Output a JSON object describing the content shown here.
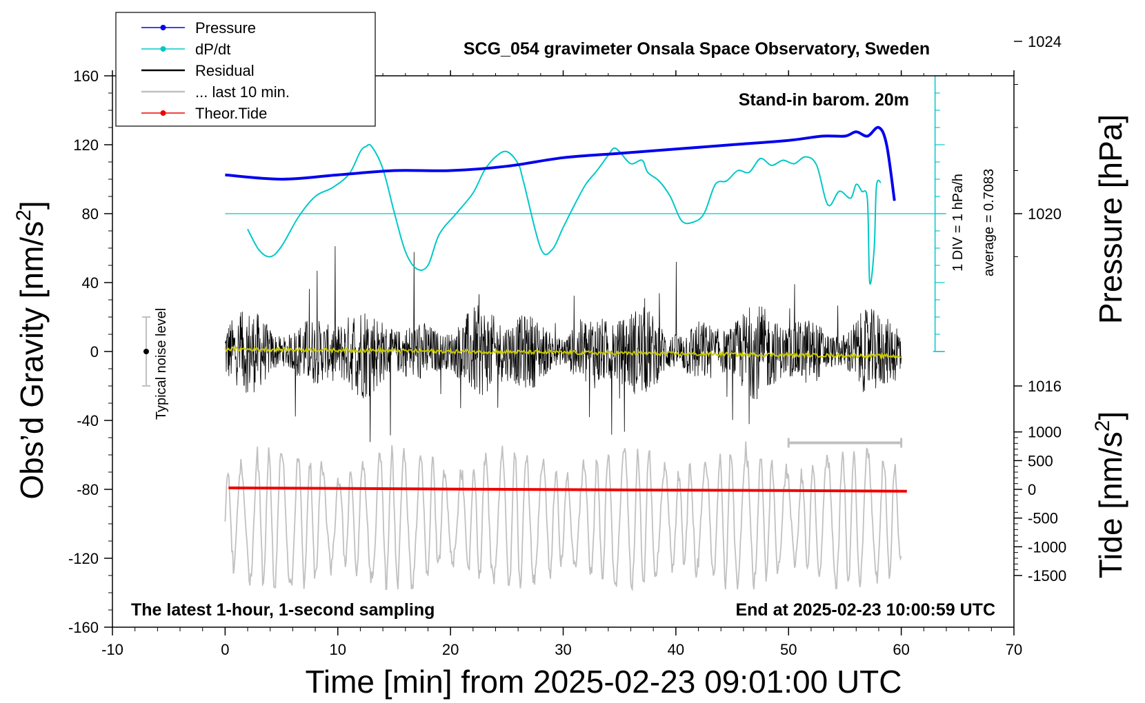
{
  "chart_data": {
    "type": "line",
    "title": "SCG_054 gravimeter Onsala Space Observatory, Sweden",
    "xlabel": "Time [min] from 2025-02-23 09:01:00 UTC",
    "ylabel_left": "Obs'd Gravity [nm/s²]",
    "ylabel_right_pressure": "Pressure [hPa]",
    "ylabel_right_tide": "Tide [nm/s²]",
    "xlim": [
      -10,
      70
    ],
    "ylim": [
      -160,
      160
    ],
    "x_ticks": [
      "-10",
      "0",
      "10",
      "20",
      "30",
      "40",
      "50",
      "60",
      "70"
    ],
    "y_ticks": [
      "160",
      "120",
      "80",
      "40",
      "0",
      "-40",
      "-80",
      "-120",
      "-160"
    ],
    "pressure_ticks": [
      "1024",
      "1020",
      "1016"
    ],
    "tide_ticks": [
      "1000",
      "500",
      "0",
      "-500",
      "-1000",
      "-1500"
    ],
    "legend": [
      "Pressure",
      "dP/dt",
      "Residual",
      "... last 10 min.",
      "Theor.Tide"
    ],
    "series": [
      {
        "name": "Pressure",
        "color": "#0000ee",
        "unit": "hPa",
        "x": [
          0,
          5,
          10,
          15,
          20,
          25,
          30,
          35,
          40,
          45,
          50,
          53,
          55,
          56,
          57,
          58,
          58.7,
          59.4
        ],
        "values": [
          1020.9,
          1020.8,
          1020.9,
          1021.0,
          1021.0,
          1021.1,
          1021.3,
          1021.4,
          1021.5,
          1021.6,
          1021.7,
          1021.8,
          1021.8,
          1021.9,
          1021.8,
          1022.0,
          1021.6,
          1020.3
        ]
      },
      {
        "name": "dP/dt",
        "color": "#00c8c8",
        "unit": "hPa/h (1 DIV = 1 hPa/h, zero at y=80)",
        "x": [
          2,
          3,
          4,
          5,
          6.5,
          8,
          9.5,
          11,
          12,
          12.5,
          13,
          14,
          15,
          16,
          17,
          18,
          19,
          20.5,
          22,
          23,
          24,
          25,
          26,
          26.5,
          28,
          29,
          30,
          31,
          32,
          33,
          34,
          34.5,
          35,
          36,
          37,
          37.5,
          38.5,
          39.5,
          40.5,
          41.5,
          42.5,
          43.5,
          44.5,
          45.5,
          46.5,
          47.5,
          48.5,
          49.5,
          50.5,
          51.5,
          52.5,
          53.5,
          54.5,
          55.5,
          56,
          56.5,
          57,
          57.2,
          57.6,
          57.8,
          58.2
        ],
        "values": [
          -0.45,
          -1.05,
          -1.25,
          -0.95,
          -0.1,
          0.5,
          0.75,
          1.15,
          1.8,
          1.95,
          1.95,
          1.3,
          0.05,
          -1.1,
          -1.6,
          -1.5,
          -0.6,
          0.0,
          0.6,
          1.25,
          1.65,
          1.8,
          1.45,
          0.9,
          -1.0,
          -1.05,
          -0.4,
          0.25,
          0.85,
          1.25,
          1.7,
          1.9,
          1.8,
          1.45,
          1.55,
          1.2,
          0.95,
          0.5,
          -0.2,
          -0.25,
          0.0,
          0.85,
          0.95,
          1.25,
          1.2,
          1.6,
          1.4,
          1.55,
          1.45,
          1.65,
          1.4,
          0.25,
          0.65,
          0.45,
          0.85,
          0.65,
          0.4,
          -2.0,
          -1.0,
          0.8,
          0.9
        ]
      },
      {
        "name": "Residual",
        "color": "#000000",
        "unit": "nm/s²",
        "x_range": [
          0,
          60
        ],
        "y_range": [
          -66,
          68
        ],
        "note": "dense 1-second noise around 0"
      },
      {
        "name": "... last 10 min.",
        "color": "#c0c0c0",
        "unit": "nm/s²",
        "x_range": [
          0,
          60
        ],
        "y_range": [
          -138,
          -47
        ],
        "note": "oscillation centered near -98"
      },
      {
        "name": "Theor.Tide",
        "color": "#ee0000",
        "unit": "nm/s² (tide axis)",
        "x": [
          0.3,
          10,
          20,
          30,
          40,
          50,
          60.5
        ],
        "values": [
          25,
          17,
          5,
          -5,
          -13,
          -22,
          -32
        ]
      },
      {
        "name": "smoothed residual",
        "color": "#c8c800",
        "unit": "nm/s²",
        "x_range": [
          0,
          60
        ],
        "y_range": [
          -4,
          2
        ]
      }
    ],
    "annotations": {
      "stand_in": "Stand-in barom. 20m",
      "div_label": "1 DIV = 1 hPa/h",
      "average_label": "average = 0.7083",
      "noise_label": "Typical noise level",
      "bottom_left": "The latest 1-hour, 1-second sampling",
      "bottom_right": "End at 2025-02-23 10:00:59 UTC"
    },
    "noise_bar": {
      "x": -7,
      "center": 0,
      "half_range": 20
    },
    "ten_min_bar": {
      "x_start": 50,
      "x_end": 60,
      "y": -53
    }
  }
}
